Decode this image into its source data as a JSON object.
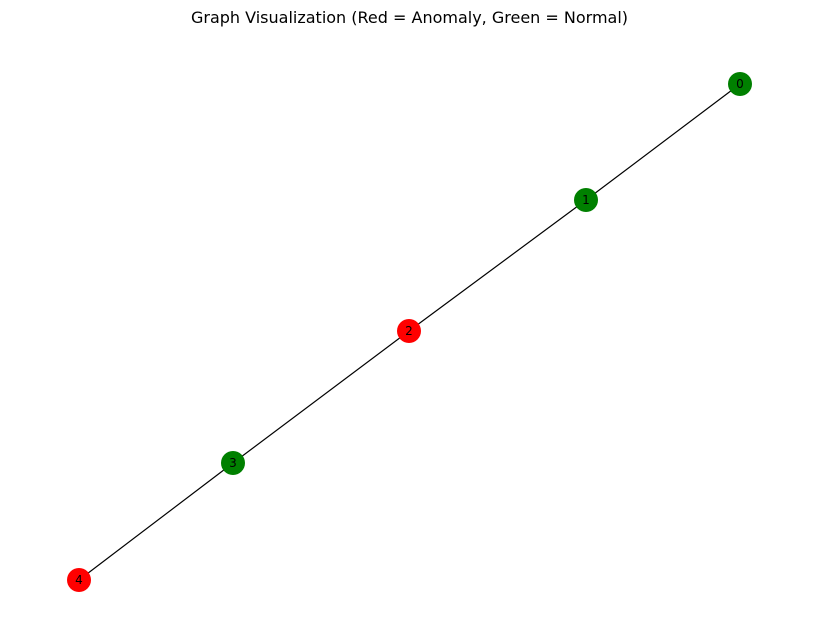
{
  "title": "Graph Visualization (Red = Anomaly, Green = Normal)",
  "colors": {
    "anomaly": "#ff0000",
    "normal": "#008000",
    "edge": "#000000"
  },
  "graph": {
    "nodes": [
      {
        "id": "0",
        "label": "0",
        "status": "normal"
      },
      {
        "id": "1",
        "label": "1",
        "status": "normal"
      },
      {
        "id": "2",
        "label": "2",
        "status": "anomaly"
      },
      {
        "id": "3",
        "label": "3",
        "status": "normal"
      },
      {
        "id": "4",
        "label": "4",
        "status": "anomaly"
      }
    ],
    "edges": [
      {
        "source": "0",
        "target": "1"
      },
      {
        "source": "1",
        "target": "2"
      },
      {
        "source": "2",
        "target": "3"
      },
      {
        "source": "3",
        "target": "4"
      }
    ]
  }
}
